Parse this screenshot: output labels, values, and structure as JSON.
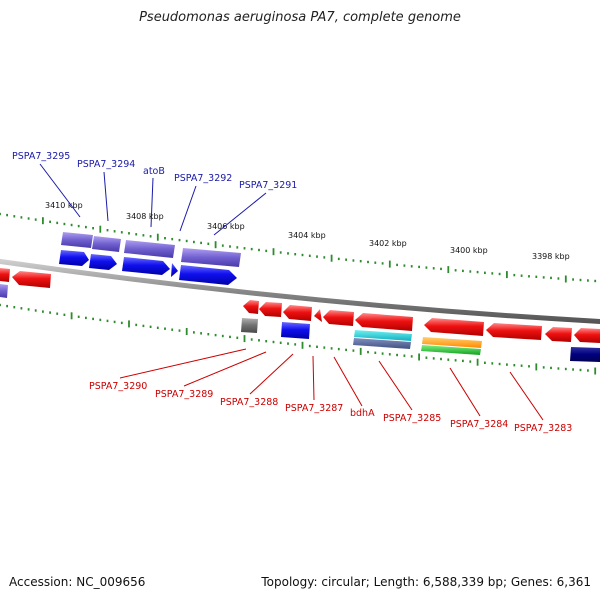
{
  "title": "Pseudomonas aeruginosa PA7, complete genome",
  "footer": {
    "accession": "Accession: NC_009656",
    "topology": "Topology: circular; Length: 6,588,339 bp; Genes: 6,361"
  },
  "colors": {
    "backbone": "#8a8a8a",
    "tick": "#2e8b2e",
    "forward_label": "#1a1aaa",
    "reverse_label": "#cc0000"
  },
  "ticks": [
    "3410 kbp",
    "3408 kbp",
    "3406 kbp",
    "3404 kbp",
    "3402 kbp",
    "3400 kbp",
    "3398 kbp"
  ],
  "forward_labels": [
    "PSPA7_3295",
    "PSPA7_3294",
    "atoB",
    "PSPA7_3292",
    "PSPA7_3291"
  ],
  "reverse_labels": [
    "PSPA7_3290",
    "PSPA7_3289",
    "PSPA7_3288",
    "PSPA7_3287",
    "bdhA",
    "PSPA7_3285",
    "PSPA7_3284",
    "PSPA7_3283"
  ]
}
